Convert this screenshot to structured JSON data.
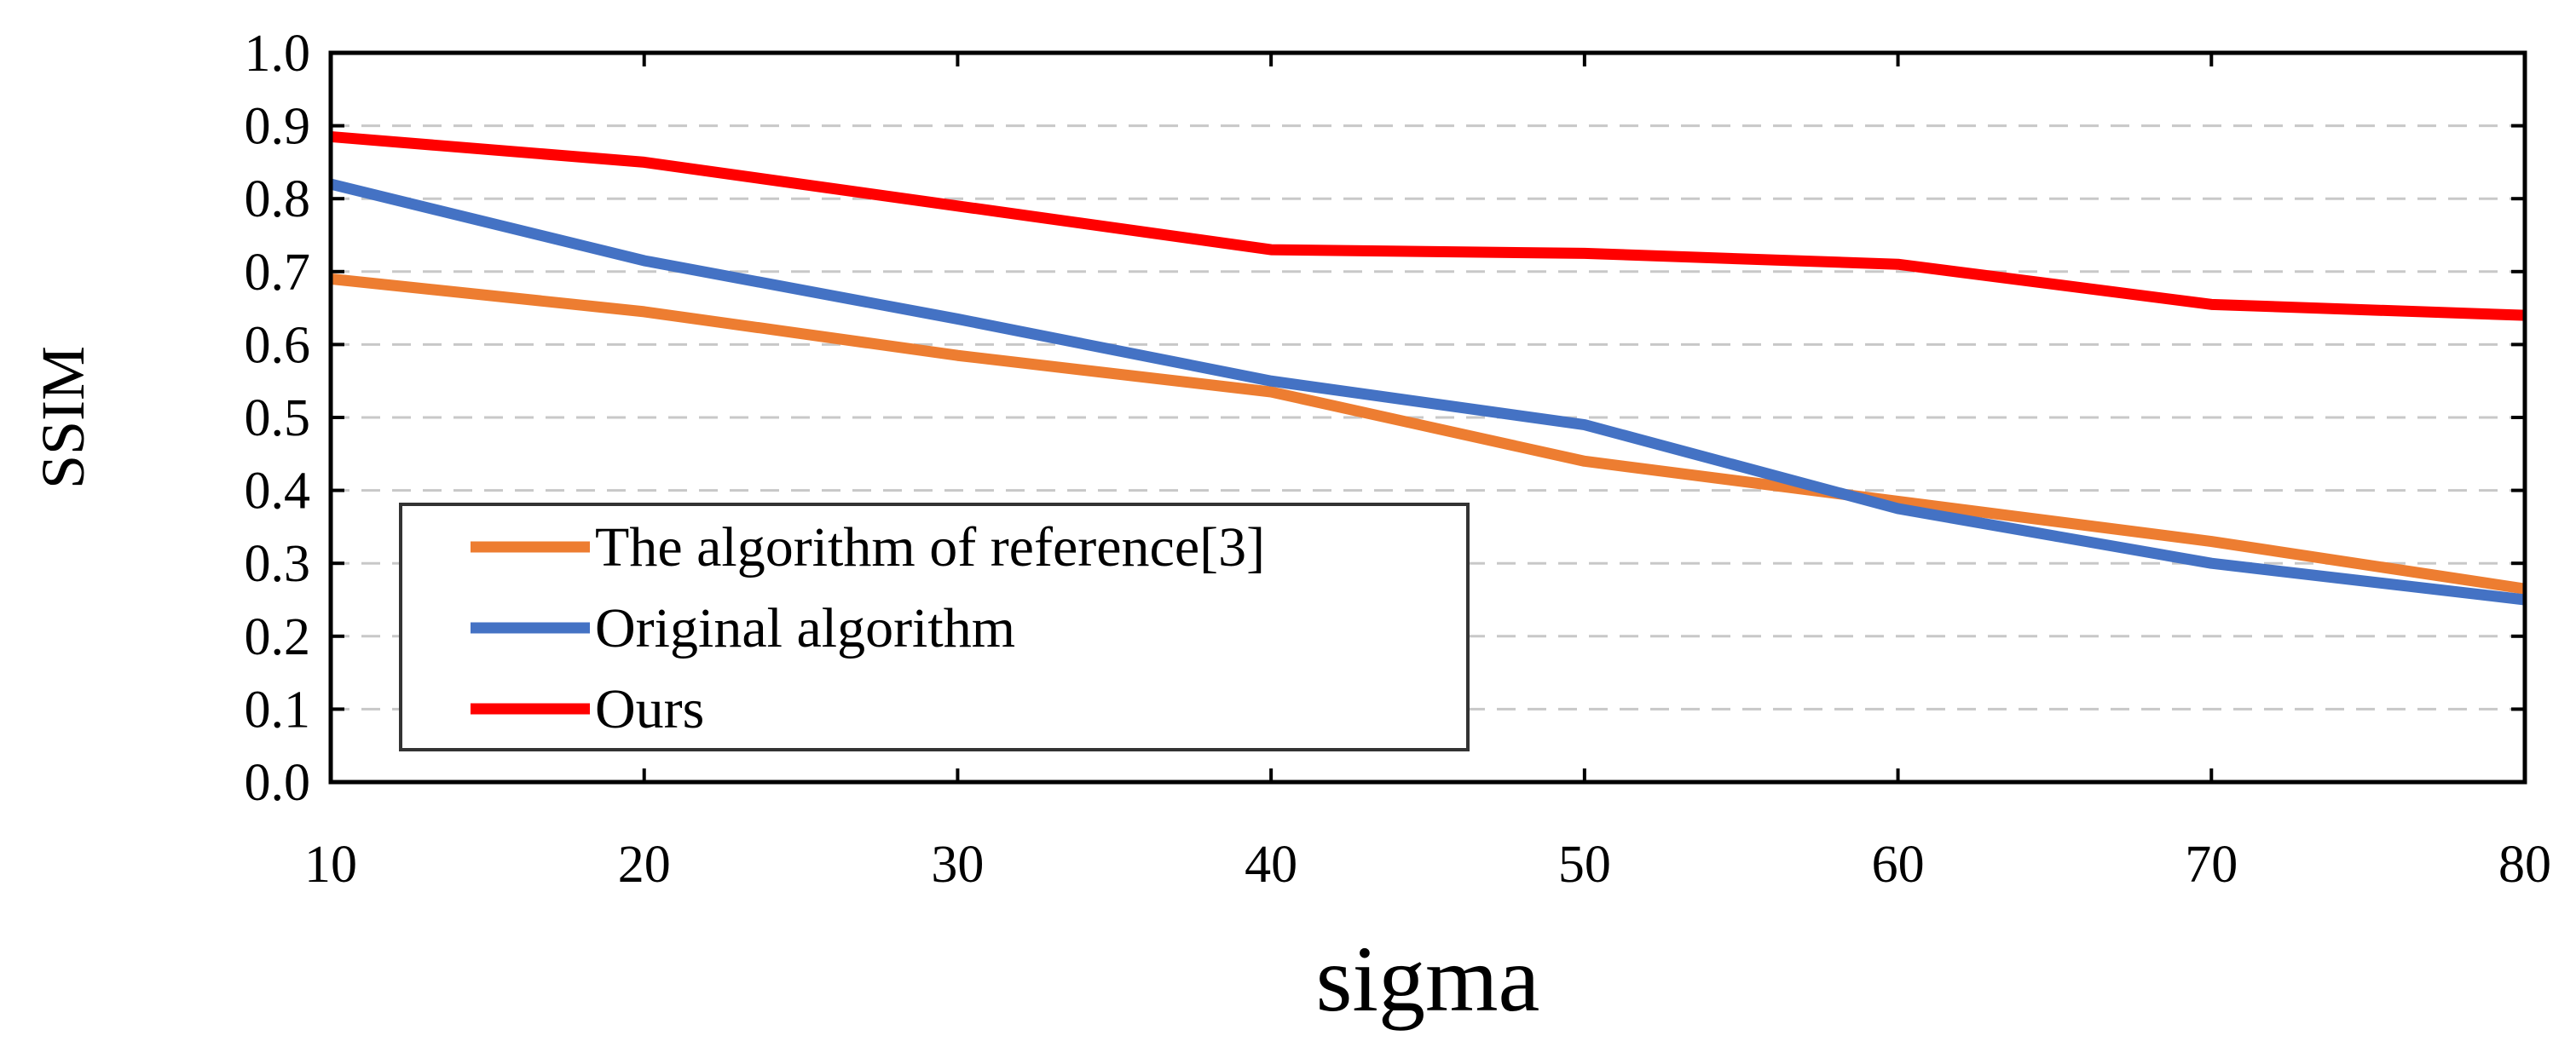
{
  "chart_data": {
    "type": "line",
    "title": "",
    "xlabel": "sigma",
    "ylabel": "SSIM",
    "x": [
      10,
      20,
      30,
      40,
      50,
      60,
      70,
      80
    ],
    "xlim": [
      10,
      80
    ],
    "ylim": [
      0.0,
      1.0
    ],
    "xticks": [
      "10",
      "20",
      "30",
      "40",
      "50",
      "60",
      "70",
      "80"
    ],
    "yticks": [
      "0.0",
      "0.1",
      "0.2",
      "0.3",
      "0.4",
      "0.5",
      "0.6",
      "0.7",
      "0.8",
      "0.9",
      "1.0"
    ],
    "grid": "horizontal-dashed",
    "legend_position": "bottom-left",
    "series": [
      {
        "name": "The algorithm of reference[3]",
        "color": "#ed7d31",
        "values": [
          0.69,
          0.645,
          0.585,
          0.535,
          0.44,
          0.385,
          0.33,
          0.265
        ]
      },
      {
        "name": "Original algorithm",
        "color": "#4472c4",
        "values": [
          0.82,
          0.715,
          0.635,
          0.55,
          0.49,
          0.375,
          0.3,
          0.25
        ]
      },
      {
        "name": "Ours",
        "color": "#ff0000",
        "values": [
          0.885,
          0.85,
          0.79,
          0.73,
          0.725,
          0.71,
          0.655,
          0.64
        ]
      }
    ]
  }
}
